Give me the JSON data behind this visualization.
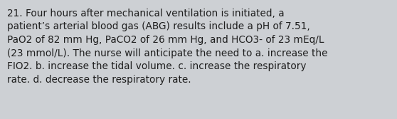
{
  "lines": [
    "21. Four hours after mechanical ventilation is initiated, a",
    "patient’s arterial blood gas (ABG) results include a pH of 7.51,",
    "PaO2 of 82 mm Hg, PaCO2 of 26 mm Hg, and HCO3- of 23 mEq/L",
    "(23 mmol/L). The nurse will anticipate the need to a. increase the",
    "FIO2. b. increase the tidal volume. c. increase the respiratory",
    "rate. d. decrease the respiratory rate."
  ],
  "background_color": "#cdd0d4",
  "text_color": "#1e1e1e",
  "font_size": 9.8,
  "fig_width": 5.58,
  "fig_height": 1.67,
  "dpi": 100
}
